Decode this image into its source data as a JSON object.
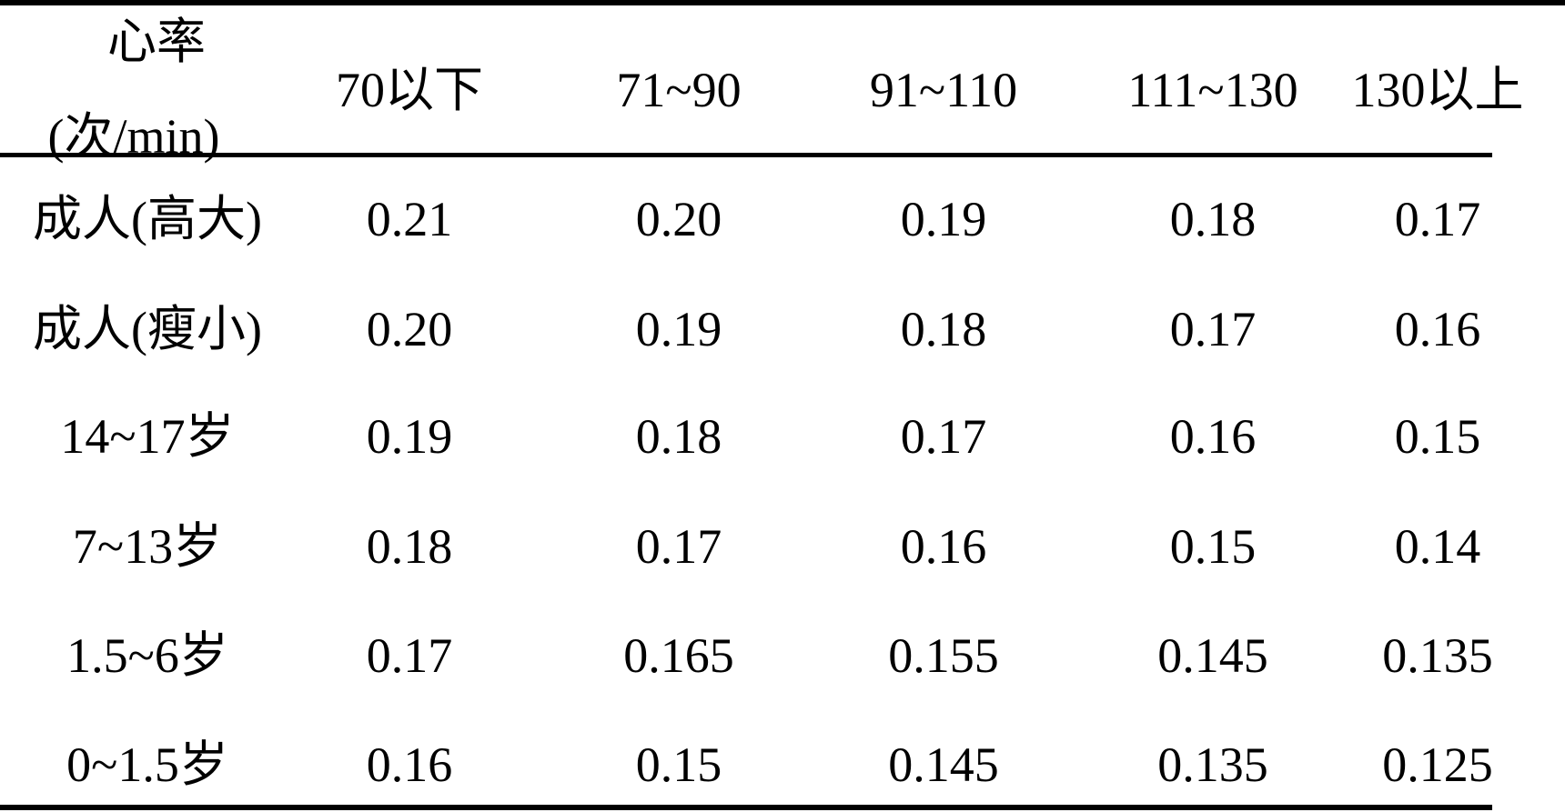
{
  "table": {
    "header": {
      "corner": [
        "心率",
        "(次/min)"
      ],
      "columns": [
        "70以下",
        "71~90",
        "91~110",
        "111~130",
        "130以上"
      ]
    },
    "rows": [
      [
        "成人(高大)",
        "0.21",
        "0.20",
        "0.19",
        "0.18",
        "0.17"
      ],
      [
        "成人(瘦小)",
        "0.20",
        "0.19",
        "0.18",
        "0.17",
        "0.16"
      ],
      [
        "14~17岁",
        "0.19",
        "0.18",
        "0.17",
        "0.16",
        "0.15"
      ],
      [
        "7~13岁",
        "0.18",
        "0.17",
        "0.16",
        "0.15",
        "0.14"
      ],
      [
        "1.5~6岁",
        "0.17",
        "0.165",
        "0.155",
        "0.145",
        "0.135"
      ],
      [
        "0~1.5岁",
        "0.16",
        "0.15",
        "0.145",
        "0.135",
        "0.125"
      ]
    ]
  }
}
